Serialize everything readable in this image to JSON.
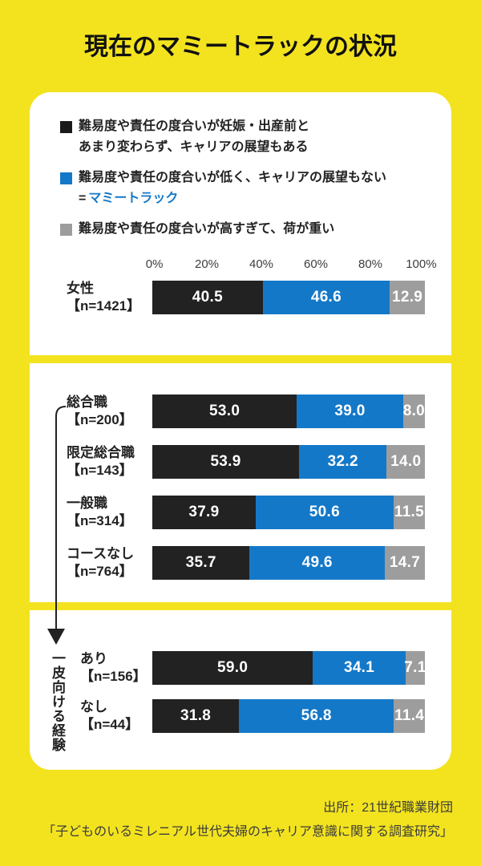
{
  "page": {
    "title": "現在のマミートラックの状況",
    "background_color": "#F3E31F",
    "source_line1": "出所：21世紀職業財団",
    "source_line2": "「子どものいるミレニアル世代夫婦のキャリア意識に関する調査研究」"
  },
  "legend": {
    "items": [
      {
        "marker_color": "#1a1a1a",
        "lines": [
          {
            "text": "難易度や責任の度合いが妊娠・出産前と"
          },
          {
            "text": "あまり変わらず、キャリアの展望もある"
          }
        ]
      },
      {
        "marker_color": "#1478C8",
        "lines": [
          {
            "text": "難易度や責任の度合いが低く、キャリアの展望もない"
          },
          {
            "prefix": "=",
            "text": "マミートラック",
            "color": "#1478C8"
          }
        ]
      },
      {
        "marker_color": "#9D9D9D",
        "lines": [
          {
            "text": "難易度や責任の度合いが高すぎて、荷が重い"
          }
        ]
      }
    ]
  },
  "chart_data": {
    "type": "bar",
    "stacked": true,
    "orientation": "horizontal",
    "title": "現在のマミートラックの状況",
    "x_axis": {
      "ticks": [
        "0%",
        "20%",
        "40%",
        "60%",
        "80%",
        "100%"
      ],
      "range": [
        0,
        100
      ]
    },
    "series_names": [
      "難易度や責任の度合いが妊娠・出産前とあまり変わらず、キャリアの展望もある",
      "難易度や責任の度合いが低く、キャリアの展望もない＝マミートラック",
      "難易度や責任の度合いが高すぎて、荷が重い"
    ],
    "series_colors": [
      "#222222",
      "#1478C8",
      "#9D9D9D"
    ],
    "legend_position": "top",
    "grid": false,
    "sections": [
      {
        "id": "female",
        "rows": [
          {
            "label": "女性",
            "n": "【n=1421】",
            "values": [
              40.5,
              46.6,
              12.9
            ]
          }
        ]
      },
      {
        "id": "course",
        "rows": [
          {
            "label": "総合職",
            "n": "【n=200】",
            "values": [
              53.0,
              39.0,
              8.0
            ]
          },
          {
            "label": "限定総合職",
            "n": "【n=143】",
            "values": [
              53.9,
              32.2,
              14.0
            ]
          },
          {
            "label": "一般職",
            "n": "【n=314】",
            "values": [
              37.9,
              50.6,
              11.5
            ]
          },
          {
            "label": "コースなし",
            "n": "【n=764】",
            "values": [
              35.7,
              49.6,
              14.7
            ]
          }
        ]
      },
      {
        "id": "experience",
        "axis_label": "一皮向ける経験",
        "rows": [
          {
            "label": "あり",
            "n": "【n=156】",
            "values": [
              59.0,
              34.1,
              7.1
            ]
          },
          {
            "label": "なし",
            "n": "【n=44】",
            "values": [
              31.8,
              56.8,
              11.4
            ]
          }
        ]
      }
    ]
  }
}
